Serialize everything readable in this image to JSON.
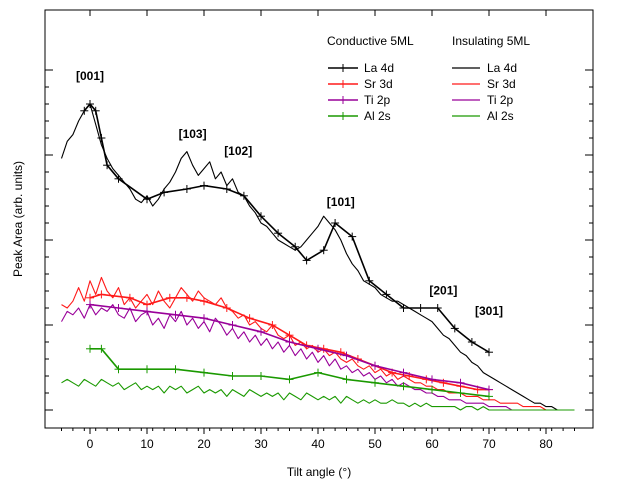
{
  "chart_data": {
    "type": "line",
    "xlabel": "Tilt angle (°)",
    "ylabel": "Peak Area (arb. units)",
    "xlim": [
      -8,
      86
    ],
    "ylim": [
      0,
      100
    ],
    "x_ticks": [
      0,
      10,
      20,
      30,
      40,
      50,
      60,
      70,
      80
    ],
    "y_ticks_labeled": false,
    "grid": false,
    "legend": {
      "placement": "top-right",
      "group_titles": [
        "Conductive 5ML",
        "Insulating 5ML"
      ],
      "entries": [
        "La 4d",
        "Sr 3d",
        "Ti 2p",
        "Al 2s"
      ]
    },
    "colors": {
      "La 4d": "#000000",
      "Sr 3d": "#ff1a1a",
      "Ti 2p": "#990099",
      "Al 2s": "#1a9900"
    },
    "annotations": [
      {
        "text": "[001]",
        "x": 0,
        "y": 97
      },
      {
        "text": "[103]",
        "x": 18,
        "y": 80
      },
      {
        "text": "[102]",
        "x": 26,
        "y": 75
      },
      {
        "text": "[101]",
        "x": 44,
        "y": 60
      },
      {
        "text": "[201]",
        "x": 62,
        "y": 34
      },
      {
        "text": "[301]",
        "x": 70,
        "y": 28
      }
    ],
    "series": [
      {
        "name": "La 4d",
        "group": "Conductive 5ML",
        "style": "line-markers",
        "x": [
          -1,
          0,
          1,
          2,
          3,
          5,
          10,
          13,
          17,
          20,
          24,
          27,
          30,
          33,
          36,
          38,
          41,
          43,
          46,
          49,
          52,
          55,
          58,
          61,
          64,
          67,
          70
        ],
        "y": [
          88,
          90,
          88,
          80,
          72,
          68,
          62,
          64,
          65,
          66,
          65,
          63,
          57,
          52,
          48,
          44,
          47,
          55,
          51,
          38,
          34,
          30,
          30,
          30,
          24,
          20,
          17
        ]
      },
      {
        "name": "La 4d",
        "group": "Insulating 5ML",
        "style": "line",
        "x": [
          -5,
          -4,
          -3,
          -2,
          -1,
          0,
          1,
          2,
          3,
          4,
          5,
          6,
          7,
          8,
          9,
          10,
          11,
          12,
          13,
          14,
          15,
          16,
          17,
          18,
          19,
          20,
          21,
          22,
          23,
          24,
          25,
          26,
          27,
          28,
          29,
          30,
          31,
          32,
          33,
          34,
          35,
          36,
          37,
          38,
          39,
          40,
          41,
          42,
          43,
          44,
          45,
          46,
          47,
          48,
          49,
          50,
          51,
          52,
          53,
          54,
          55,
          56,
          57,
          58,
          59,
          60,
          61,
          62,
          63,
          64,
          65,
          66,
          67,
          68,
          69,
          70,
          71,
          72,
          73,
          74,
          75,
          76,
          77,
          78,
          79,
          80,
          81,
          82,
          83,
          84,
          85
        ],
        "y": [
          74,
          79,
          81,
          85,
          88,
          90,
          84,
          78,
          74,
          71,
          69,
          67,
          65,
          62,
          61,
          63,
          60,
          62,
          65,
          67,
          70,
          74,
          76,
          72,
          69,
          71,
          73,
          68,
          70,
          66,
          68,
          64,
          63,
          60,
          58,
          55,
          54,
          52,
          50,
          49,
          48,
          47,
          48,
          50,
          52,
          54,
          57,
          55,
          53,
          50,
          46,
          43,
          41,
          38,
          37,
          36,
          34,
          33,
          32,
          32,
          31,
          30,
          29,
          28,
          27,
          26,
          24,
          22,
          21,
          19,
          17,
          16,
          14,
          13,
          11,
          10,
          9,
          8,
          7,
          6,
          5,
          4,
          3,
          2,
          2,
          1,
          1,
          0,
          0,
          0,
          0
        ]
      },
      {
        "name": "Sr 3d",
        "group": "Conductive 5ML",
        "style": "line-markers",
        "x": [
          0,
          2,
          7,
          10,
          14,
          17,
          20,
          24,
          28,
          32,
          35,
          38,
          41,
          44,
          47,
          50,
          53,
          56,
          59,
          62,
          65,
          68,
          70
        ],
        "y": [
          33,
          34,
          33,
          31,
          33,
          33,
          32,
          30,
          27,
          25,
          22,
          19,
          18,
          17,
          15,
          13,
          11,
          10,
          9,
          8,
          7,
          6,
          6
        ]
      },
      {
        "name": "Sr 3d",
        "group": "Insulating 5ML",
        "style": "line",
        "x": [
          -5,
          -4,
          -3,
          -2,
          -1,
          0,
          1,
          2,
          3,
          4,
          5,
          6,
          7,
          8,
          9,
          10,
          11,
          12,
          13,
          14,
          15,
          16,
          17,
          18,
          19,
          20,
          21,
          22,
          23,
          24,
          25,
          26,
          27,
          28,
          29,
          30,
          31,
          32,
          33,
          34,
          35,
          36,
          37,
          38,
          39,
          40,
          41,
          42,
          43,
          44,
          45,
          46,
          47,
          48,
          49,
          50,
          51,
          52,
          53,
          54,
          55,
          56,
          57,
          58,
          59,
          60,
          61,
          62,
          63,
          64,
          65,
          66,
          67,
          68,
          69,
          70,
          71,
          72,
          73,
          74,
          75,
          76,
          77,
          78,
          79,
          80,
          81,
          82,
          83,
          84,
          85
        ],
        "y": [
          31,
          30,
          32,
          36,
          32,
          38,
          34,
          39,
          35,
          33,
          36,
          31,
          33,
          30,
          32,
          34,
          31,
          35,
          32,
          30,
          33,
          36,
          34,
          32,
          35,
          33,
          32,
          31,
          33,
          30,
          29,
          27,
          28,
          25,
          26,
          24,
          23,
          25,
          22,
          21,
          22,
          19,
          20,
          18,
          19,
          17,
          18,
          16,
          17,
          15,
          14,
          15,
          13,
          12,
          13,
          11,
          12,
          10,
          11,
          9,
          10,
          9,
          8,
          8,
          7,
          7,
          6,
          6,
          5,
          5,
          5,
          4,
          4,
          4,
          3,
          3,
          3,
          2,
          2,
          2,
          2,
          1,
          1,
          1,
          1,
          0,
          0,
          0,
          0,
          0,
          0
        ]
      },
      {
        "name": "Ti 2p",
        "group": "Conductive 5ML",
        "style": "line-markers",
        "x": [
          0,
          5,
          10,
          15,
          20,
          25,
          30,
          35,
          40,
          45,
          50,
          55,
          60,
          65,
          70
        ],
        "y": [
          31,
          30,
          29,
          28,
          27,
          25,
          23,
          20,
          18,
          16,
          13,
          11,
          9,
          8,
          6
        ]
      },
      {
        "name": "Ti 2p",
        "group": "Insulating 5ML",
        "style": "line",
        "x": [
          -5,
          -4,
          -3,
          -2,
          -1,
          0,
          1,
          2,
          3,
          4,
          5,
          6,
          7,
          8,
          9,
          10,
          11,
          12,
          13,
          14,
          15,
          16,
          17,
          18,
          19,
          20,
          21,
          22,
          23,
          24,
          25,
          26,
          27,
          28,
          29,
          30,
          31,
          32,
          33,
          34,
          35,
          36,
          37,
          38,
          39,
          40,
          41,
          42,
          43,
          44,
          45,
          46,
          47,
          48,
          49,
          50,
          51,
          52,
          53,
          54,
          55,
          56,
          57,
          58,
          59,
          60,
          61,
          62,
          63,
          64,
          65,
          66,
          67,
          68,
          69,
          70,
          71,
          72,
          73,
          74,
          75,
          76,
          77,
          78,
          79,
          80,
          81,
          82,
          83,
          84,
          85
        ],
        "y": [
          26,
          29,
          28,
          30,
          27,
          31,
          28,
          30,
          29,
          31,
          28,
          27,
          30,
          26,
          28,
          29,
          25,
          27,
          24,
          28,
          26,
          29,
          25,
          27,
          24,
          26,
          23,
          27,
          25,
          22,
          24,
          21,
          23,
          20,
          22,
          19,
          21,
          18,
          20,
          17,
          19,
          16,
          18,
          15,
          17,
          14,
          16,
          13,
          15,
          12,
          13,
          11,
          12,
          10,
          11,
          9,
          10,
          8,
          9,
          7,
          8,
          7,
          6,
          6,
          5,
          5,
          4,
          4,
          3,
          3,
          3,
          2,
          2,
          2,
          2,
          1,
          1,
          1,
          1,
          0,
          0,
          0,
          0,
          0,
          0,
          0,
          0,
          0,
          0,
          0,
          0
        ]
      },
      {
        "name": "Al 2s",
        "group": "Conductive 5ML",
        "style": "line-markers",
        "x": [
          0,
          2,
          5,
          10,
          15,
          20,
          25,
          30,
          35,
          40,
          45,
          50,
          55,
          60,
          65,
          70
        ],
        "y": [
          18,
          18,
          12,
          12,
          12,
          11,
          10,
          10,
          9,
          11,
          9,
          8,
          7,
          6,
          5,
          4
        ]
      },
      {
        "name": "Al 2s",
        "group": "Insulating 5ML",
        "style": "line",
        "x": [
          -5,
          -4,
          -3,
          -2,
          -1,
          0,
          1,
          2,
          3,
          4,
          5,
          6,
          7,
          8,
          9,
          10,
          11,
          12,
          13,
          14,
          15,
          16,
          17,
          18,
          19,
          20,
          21,
          22,
          23,
          24,
          25,
          26,
          27,
          28,
          29,
          30,
          31,
          32,
          33,
          34,
          35,
          36,
          37,
          38,
          39,
          40,
          41,
          42,
          43,
          44,
          45,
          46,
          47,
          48,
          49,
          50,
          51,
          52,
          53,
          54,
          55,
          56,
          57,
          58,
          59,
          60,
          61,
          62,
          63,
          64,
          65,
          66,
          67,
          68,
          69,
          70,
          71,
          72,
          73,
          74,
          75,
          76,
          77,
          78,
          79,
          80,
          81,
          82,
          83,
          84,
          85
        ],
        "y": [
          8,
          9,
          8,
          7,
          9,
          8,
          7,
          9,
          8,
          7,
          8,
          6,
          7,
          8,
          6,
          7,
          6,
          7,
          5,
          7,
          6,
          7,
          5,
          6,
          7,
          5,
          6,
          5,
          6,
          4,
          6,
          5,
          4,
          6,
          5,
          4,
          5,
          4,
          5,
          3,
          5,
          4,
          3,
          5,
          4,
          3,
          4,
          3,
          4,
          2,
          4,
          3,
          2,
          3,
          2,
          3,
          2,
          2,
          3,
          2,
          2,
          1,
          2,
          1,
          2,
          1,
          1,
          1,
          1,
          1,
          0,
          1,
          1,
          0,
          1,
          0,
          0,
          0,
          0,
          0,
          0,
          0,
          0,
          0,
          0,
          0,
          0,
          0,
          0,
          0,
          0
        ]
      }
    ]
  }
}
